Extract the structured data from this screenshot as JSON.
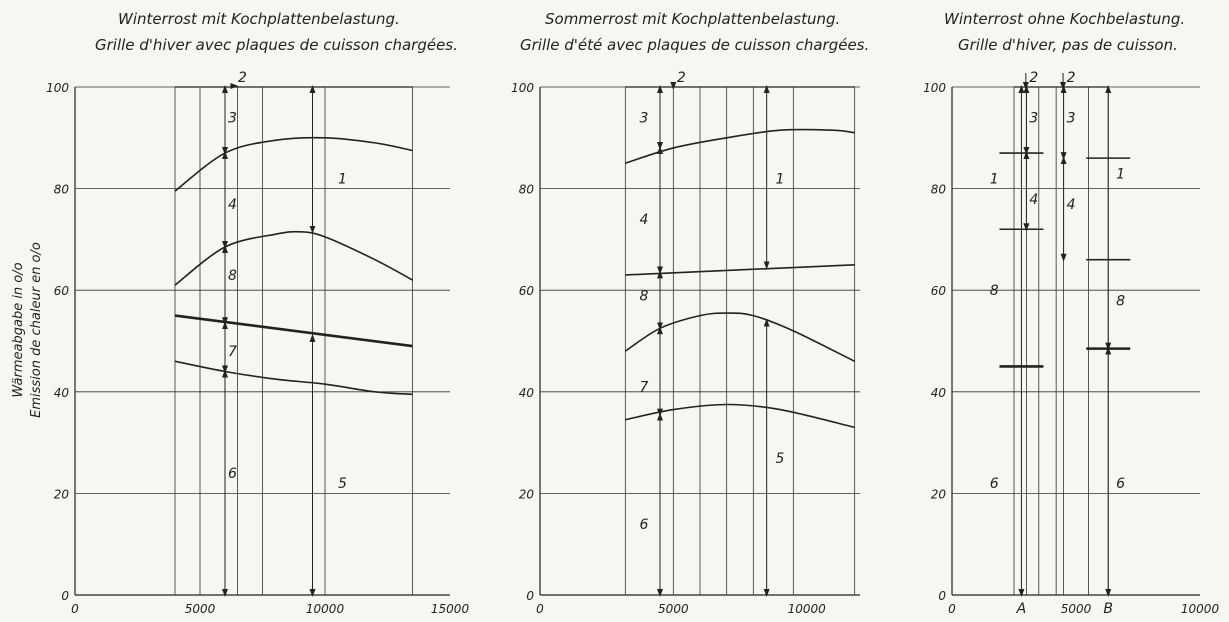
{
  "y_axis_label_de": "Wärmeabgabe in o/o",
  "y_axis_label_fr": "Emission de chaleur en o/o",
  "chart_data": [
    {
      "type": "line",
      "title_de": "Winterrost mit Kochplattenbelastung.",
      "title_fr": "Grille d'hiver avec plaques de cuisson chargées.",
      "xlim": [
        0,
        15000
      ],
      "ylim": [
        0,
        100
      ],
      "x_ticks": [
        "0",
        "5000",
        "10000",
        "15000"
      ],
      "y_ticks": [
        "0",
        "20",
        "40",
        "60",
        "80",
        "100"
      ],
      "series": [
        {
          "x": [
            4000,
            6000,
            8000,
            10000,
            12000,
            13500
          ],
          "values": [
            79.5,
            87,
            89.5,
            90,
            89,
            87.5
          ]
        },
        {
          "x": [
            4000,
            6000,
            8000,
            9000,
            10000,
            12000,
            13500
          ],
          "values": [
            61,
            68.5,
            71,
            71.5,
            70.5,
            66,
            62
          ]
        },
        {
          "x": [
            4000,
            13500
          ],
          "values": [
            55,
            49
          ],
          "bold": true
        },
        {
          "x": [
            4000,
            6000,
            8000,
            10000,
            12000,
            13500
          ],
          "values": [
            46,
            44,
            42.5,
            41.5,
            40,
            39.5
          ]
        }
      ],
      "annotations": [
        {
          "text": "2",
          "x": 6700,
          "y": 102
        },
        {
          "text": "3",
          "x": 6300,
          "y": 94
        },
        {
          "text": "1",
          "x": 10700,
          "y": 82
        },
        {
          "text": "4",
          "x": 6300,
          "y": 77
        },
        {
          "text": "8",
          "x": 6300,
          "y": 63
        },
        {
          "text": "7",
          "x": 6300,
          "y": 48
        },
        {
          "text": "6",
          "x": 6300,
          "y": 24
        },
        {
          "text": "5",
          "x": 10700,
          "y": 22
        }
      ],
      "arrows": [
        {
          "x": 6000,
          "y1": 100,
          "y2": 87
        },
        {
          "x": 6000,
          "y1": 87,
          "y2": 68.5
        },
        {
          "x": 6000,
          "y1": 68.5,
          "y2": 53.5
        },
        {
          "x": 6000,
          "y1": 53.5,
          "y2": 44
        },
        {
          "x": 6000,
          "y1": 44,
          "y2": 0
        },
        {
          "x": 9500,
          "y1": 100,
          "y2": 71.5
        },
        {
          "x": 9500,
          "y1": 51,
          "y2": 0
        }
      ]
    },
    {
      "type": "line",
      "title_de": "Sommerrost mit Kochplattenbelastung.",
      "title_fr": "Grille d'été avec plaques de cuisson chargées.",
      "xlim": [
        0,
        12000
      ],
      "ylim": [
        0,
        100
      ],
      "x_ticks": [
        "0",
        "5000",
        "10000"
      ],
      "y_ticks": [
        "0",
        "20",
        "40",
        "60",
        "80",
        "100"
      ],
      "series": [
        {
          "x": [
            3200,
            5000,
            7000,
            9000,
            11000,
            11800
          ],
          "values": [
            85,
            88,
            90,
            91.5,
            91.5,
            91
          ]
        },
        {
          "x": [
            3200,
            11800
          ],
          "values": [
            63,
            65
          ]
        },
        {
          "x": [
            3200,
            4500,
            6000,
            7000,
            8000,
            9500,
            11800
          ],
          "values": [
            48,
            52.5,
            55,
            55.5,
            55,
            52,
            46
          ]
        },
        {
          "x": [
            3200,
            5000,
            7000,
            9000,
            11800
          ],
          "values": [
            34.5,
            36.5,
            37.5,
            36.5,
            33
          ]
        }
      ],
      "annotations": [
        {
          "text": "2",
          "x": 5300,
          "y": 102
        },
        {
          "text": "3",
          "x": 3900,
          "y": 94
        },
        {
          "text": "1",
          "x": 9000,
          "y": 82
        },
        {
          "text": "4",
          "x": 3900,
          "y": 74
        },
        {
          "text": "8",
          "x": 3900,
          "y": 59
        },
        {
          "text": "7",
          "x": 3900,
          "y": 41
        },
        {
          "text": "5",
          "x": 9000,
          "y": 27
        },
        {
          "text": "6",
          "x": 3900,
          "y": 14
        }
      ],
      "arrows": [
        {
          "x": 4500,
          "y1": 100,
          "y2": 88
        },
        {
          "x": 4500,
          "y1": 88,
          "y2": 63.5
        },
        {
          "x": 4500,
          "y1": 63.5,
          "y2": 52.5
        },
        {
          "x": 4500,
          "y1": 52.5,
          "y2": 35.5
        },
        {
          "x": 4500,
          "y1": 35.5,
          "y2": 0
        },
        {
          "x": 8500,
          "y1": 100,
          "y2": 64.5
        },
        {
          "x": 8500,
          "y1": 54,
          "y2": 0
        }
      ]
    },
    {
      "type": "bar",
      "title_de": "Winterrost ohne Kochbelastung.",
      "title_fr": "Grille d'hiver, pas de cuisson.",
      "xlim": [
        0,
        10000
      ],
      "ylim": [
        0,
        100
      ],
      "x_ticks": [
        "0",
        "5000",
        "10000"
      ],
      "y_ticks": [
        "0",
        "20",
        "40",
        "60",
        "80",
        "100"
      ],
      "categories": [
        "A",
        "B"
      ],
      "category_x": [
        2800,
        6300
      ],
      "levels": [
        {
          "category": "A",
          "values": [
            87,
            72,
            45
          ]
        },
        {
          "category": "B",
          "values": [
            86,
            66,
            48.5
          ]
        }
      ],
      "annotations": [
        {
          "text": "2",
          "x": 3300,
          "y": 102
        },
        {
          "text": "2",
          "x": 4800,
          "y": 102
        },
        {
          "text": "3",
          "x": 3300,
          "y": 94
        },
        {
          "text": "3",
          "x": 4800,
          "y": 94
        },
        {
          "text": "1",
          "x": 1700,
          "y": 82
        },
        {
          "text": "4",
          "x": 3300,
          "y": 78
        },
        {
          "text": "4",
          "x": 4800,
          "y": 77
        },
        {
          "text": "1",
          "x": 6800,
          "y": 83
        },
        {
          "text": "8",
          "x": 1700,
          "y": 60
        },
        {
          "text": "8",
          "x": 6800,
          "y": 58
        },
        {
          "text": "6",
          "x": 1700,
          "y": 22
        },
        {
          "text": "6",
          "x": 6800,
          "y": 22
        }
      ],
      "arrows": [
        {
          "x": 2800,
          "y1": 100,
          "y2": 0
        },
        {
          "x": 3000,
          "y1": 100,
          "y2": 87
        },
        {
          "x": 3000,
          "y1": 87,
          "y2": 72
        },
        {
          "x": 4500,
          "y1": 100,
          "y2": 86
        },
        {
          "x": 4500,
          "y1": 86,
          "y2": 66
        },
        {
          "x": 6300,
          "y1": 100,
          "y2": 48.5
        },
        {
          "x": 6300,
          "y1": 48.5,
          "y2": 0
        }
      ]
    }
  ]
}
